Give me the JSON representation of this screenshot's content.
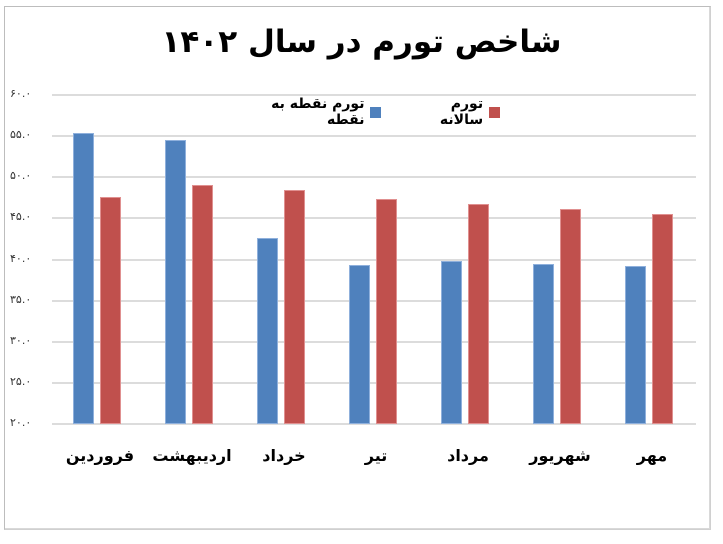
{
  "chart_data": {
    "type": "bar",
    "title": "شاخص تورم در سال ۱۴۰۲",
    "xlabel": "",
    "ylabel": "",
    "ylim": [
      20,
      60
    ],
    "ytick_step": 5,
    "yticks": [
      "۶۰.۰",
      "۵۵.۰",
      "۵۰.۰",
      "۴۵.۰",
      "۴۰.۰",
      "۳۵.۰",
      "۳۰.۰",
      "۲۵.۰",
      "۲۰.۰"
    ],
    "grid": true,
    "legend_position": "top",
    "categories": [
      "فروردین",
      "اردیبهشت",
      "خرداد",
      "تیر",
      "مرداد",
      "شهریور",
      "مهر"
    ],
    "series": [
      {
        "name": "تورم نقطه به نقطه",
        "color": "#4f81bd",
        "values": [
          55.4,
          54.5,
          42.6,
          39.3,
          39.8,
          39.5,
          39.2
        ]
      },
      {
        "name": "تورم سالانه",
        "color": "#c0504d",
        "values": [
          47.6,
          49.0,
          48.4,
          47.4,
          46.7,
          46.1,
          45.5
        ]
      }
    ]
  }
}
